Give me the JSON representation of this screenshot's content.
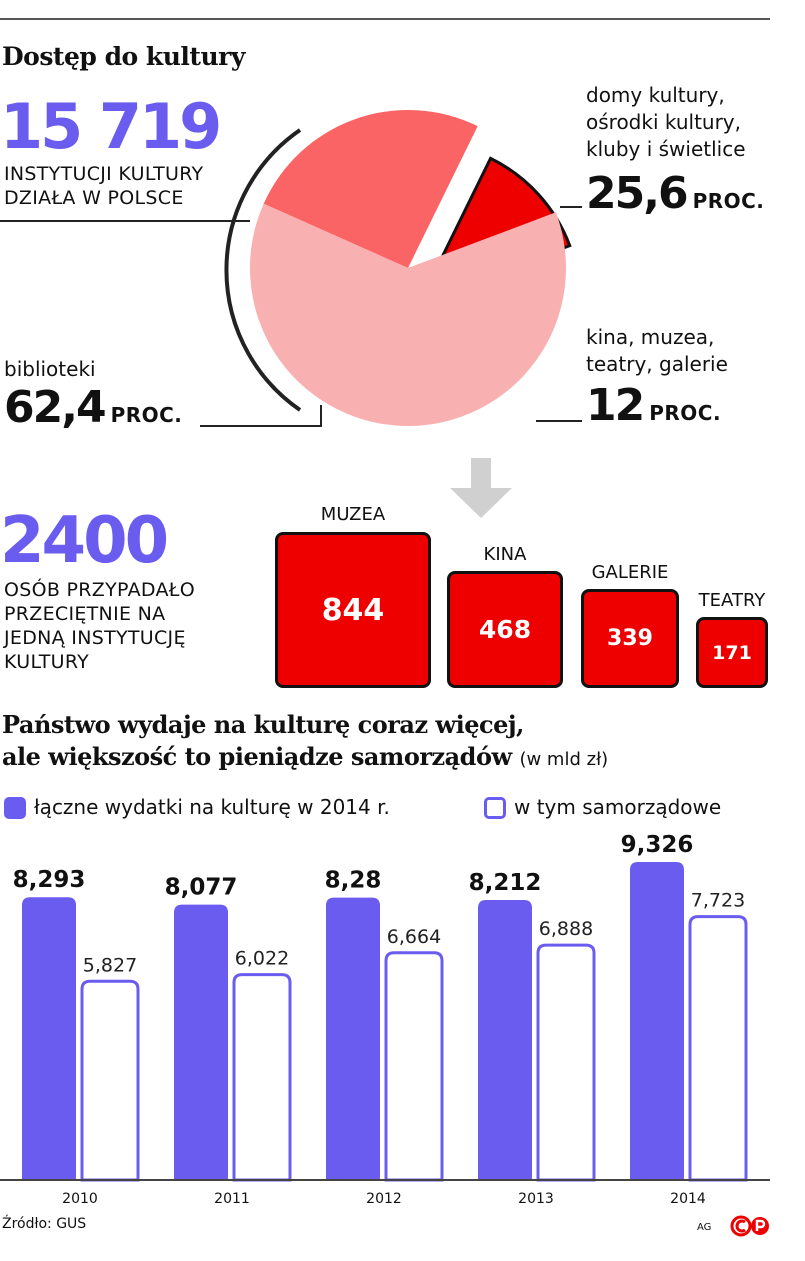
{
  "title": "Dostęp do kultury",
  "total": {
    "value": "15 719",
    "caption": [
      "INSTYTUCJI KULTURY",
      "DZIAŁA W POLSCE"
    ]
  },
  "pie": {
    "slices": [
      {
        "name": "biblioteki",
        "value": 62.4,
        "value_label": "62,4",
        "unit": "PROC.",
        "color": "#f9b0b0"
      },
      {
        "name": "domy kultury, ośrodki kultury, kluby i świetlice",
        "value": 25.6,
        "value_label": "25,6",
        "unit": "PROC.",
        "color": "#fb6464"
      },
      {
        "name": "kina, muzea, teatry, galerie",
        "value": 12,
        "value_label": "12",
        "unit": "PROC.",
        "color": "#ee0000"
      }
    ],
    "labels": {
      "domy": [
        "domy kultury,",
        "ośrodki kultury,",
        "kluby i świetlice"
      ],
      "kina": [
        "kina, muzea,",
        "teatry, galerie"
      ]
    }
  },
  "per_institution": {
    "value": "2400",
    "caption": [
      "OSÓB PRZYPADAŁO",
      "PRZECIĘTNIE NA",
      "JEDNĄ INSTYTUCJĘ",
      "KULTURY"
    ]
  },
  "boxes": [
    {
      "label": "MUZEA",
      "value": 844
    },
    {
      "label": "KINA",
      "value": 468
    },
    {
      "label": "GALERIE",
      "value": 339
    },
    {
      "label": "TEATRY",
      "value": 171
    }
  ],
  "bars_title": [
    "Państwo wydaje na kulturę coraz więcej,",
    "ale większość to pieniądze samorządów"
  ],
  "bars_unit": "(w mld zł)",
  "legend": {
    "total": "łączne wydatki na kulturę w 2014 r.",
    "local": "w tym samorządowe"
  },
  "chart_data": {
    "type": "bar",
    "categories": [
      "2010",
      "2011",
      "2012",
      "2013",
      "2014"
    ],
    "series": [
      {
        "name": "łączne wydatki na kulturę w 2014 r.",
        "values": [
          8.293,
          8.077,
          8.28,
          8.212,
          9.326
        ],
        "labels": [
          "8,293",
          "8,077",
          "8,28",
          "8,212",
          "9,326"
        ],
        "color": "#6b5cf0"
      },
      {
        "name": "w tym samorządowe",
        "values": [
          5.827,
          6.022,
          6.664,
          6.888,
          7.723
        ],
        "labels": [
          "5,827",
          "6,022",
          "6,664",
          "6,888",
          "7,723"
        ],
        "color": "#ffffff"
      }
    ],
    "title": "Państwo wydaje na kulturę coraz więcej, ale większość to pieniądze samorządów"
  },
  "source": "Źródło: GUS",
  "credit": "AG"
}
